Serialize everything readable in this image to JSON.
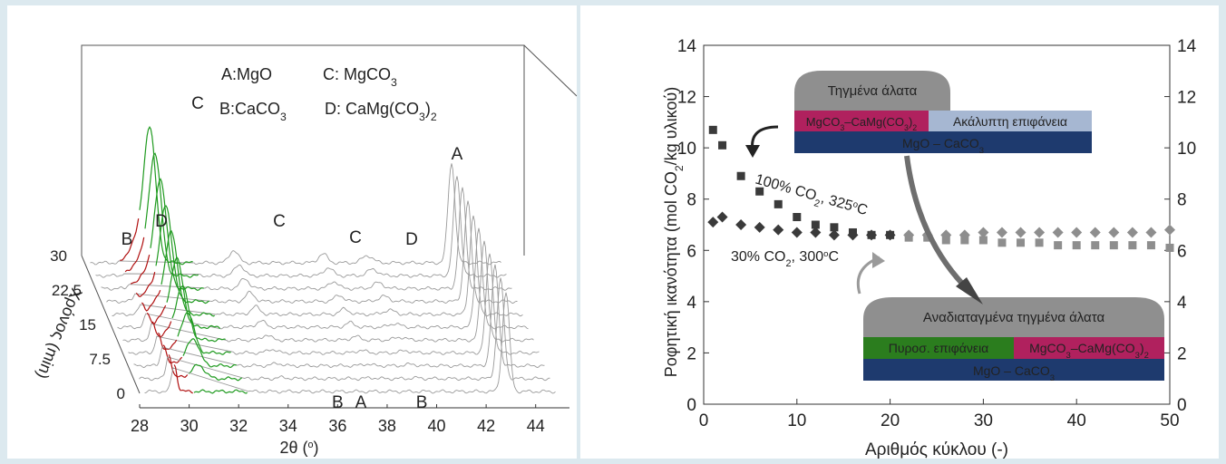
{
  "chart_data": [
    {
      "type": "line",
      "style": "3d-waterfall",
      "xlabel": "2θ (°)",
      "ylabel": "Χρόνος (min)",
      "xlim": [
        28,
        45
      ],
      "x_ticks": [
        "28",
        "30",
        "32",
        "34",
        "36",
        "38",
        "40",
        "42",
        "44"
      ],
      "depth_ticks": [
        "0",
        "7.5",
        "15",
        "22.5",
        "30"
      ],
      "legend": [
        {
          "key": "A",
          "name": "MgO"
        },
        {
          "key": "B",
          "name": "CaCO3"
        },
        {
          "key": "C",
          "name": "MgCO3"
        },
        {
          "key": "D",
          "name": "CaMg(CO3)2"
        }
      ],
      "legend_lines": [
        "A:MgO",
        "C: MgCO",
        "B:CaCO",
        "D: CaMg(CO",
        ")"
      ],
      "legend_subscripts": [
        "3",
        "3",
        "3",
        "2"
      ],
      "peaks": [
        {
          "label": "B",
          "x": 29.4,
          "on": "back"
        },
        {
          "label": "D",
          "x": 30.9,
          "on": "back"
        },
        {
          "label": "C",
          "x": 32.6,
          "on": "back"
        },
        {
          "label": "C",
          "x": 36.2,
          "on": "back"
        },
        {
          "label": "C",
          "x": 40.9,
          "on": "back"
        },
        {
          "label": "D",
          "x": 41.5,
          "on": "back"
        },
        {
          "label": "A",
          "x": 43.1,
          "on": "back"
        },
        {
          "label": "B",
          "x": 36.0,
          "on": "front"
        },
        {
          "label": "A",
          "x": 36.5,
          "on": "front"
        },
        {
          "label": "B",
          "x": 39.4,
          "on": "front"
        }
      ],
      "colors": {
        "dolomite": "#b01010",
        "magnesite": "#1f9a1f",
        "other": "#9a9a9a"
      }
    },
    {
      "type": "scatter",
      "xlabel": "Αριθμός κύκλου (-)",
      "ylabel": "Ροφητική ικανότητα (mol CO",
      "ylabel_tail": "/kg υλικού)",
      "ylabel_sub": "2",
      "xlim": [
        0,
        50
      ],
      "ylim": [
        0,
        14
      ],
      "x_ticks": [
        "0",
        "10",
        "20",
        "30",
        "40",
        "50"
      ],
      "y_ticks": [
        "0",
        "2",
        "4",
        "6",
        "8",
        "10",
        "12",
        "14"
      ],
      "series": [
        {
          "label_main": "100% CO",
          "label_sub": "2",
          "label_tail": ", 325",
          "label_sup": "o",
          "label_end": "C",
          "marker": "square",
          "x": [
            1,
            2,
            4,
            6,
            8,
            10,
            12,
            14,
            16,
            18,
            20,
            22,
            24,
            26,
            28,
            30,
            32,
            34,
            36,
            38,
            40,
            42,
            44,
            46,
            48,
            50
          ],
          "y": [
            10.7,
            10.1,
            8.9,
            8.3,
            7.8,
            7.3,
            7.0,
            6.9,
            6.7,
            6.6,
            6.6,
            6.5,
            6.5,
            6.4,
            6.4,
            6.4,
            6.3,
            6.3,
            6.3,
            6.2,
            6.2,
            6.2,
            6.2,
            6.2,
            6.2,
            6.1
          ]
        },
        {
          "label_main": "30% CO",
          "label_sub": "2",
          "label_tail": ", 300",
          "label_sup": "o",
          "label_end": "C",
          "marker": "diamond",
          "x": [
            1,
            2,
            4,
            6,
            8,
            10,
            12,
            14,
            16,
            18,
            20,
            22,
            24,
            26,
            28,
            30,
            32,
            34,
            36,
            38,
            40,
            42,
            44,
            46,
            48,
            50
          ],
          "y": [
            7.1,
            7.3,
            7.0,
            6.9,
            6.8,
            6.7,
            6.7,
            6.6,
            6.6,
            6.6,
            6.6,
            6.6,
            6.6,
            6.6,
            6.6,
            6.7,
            6.7,
            6.7,
            6.7,
            6.7,
            6.7,
            6.7,
            6.7,
            6.7,
            6.7,
            6.8
          ]
        }
      ],
      "annotations": {
        "top_cap": "Τηγμένα άλατα",
        "top_row1_left": "MgCO",
        "top_row1_left_b": "–CaMg(CO",
        "top_row1_left_c": ")",
        "top_row1_right": "Ακάλυπτη επιφάνεια",
        "top_row2": "MgO – CaCO",
        "bottom_cap": "Αναδιαταγμένα τηγμένα άλατα",
        "bottom_row1_left": "Πυροσ. επιφάνεια",
        "bottom_row1_right": "MgCO",
        "bottom_row1_right_b": "–CaMg(CO",
        "bottom_row1_right_c": ")",
        "bottom_row2": "MgO – CaCO"
      },
      "subscript_3": "3",
      "subscript_2": "2",
      "colors": {
        "magenta": "#b0215e",
        "navy": "#1e3a6e",
        "green": "#2b7d1e",
        "lightblue": "#a6b7d2",
        "cap": "#8f8f8f"
      }
    }
  ]
}
